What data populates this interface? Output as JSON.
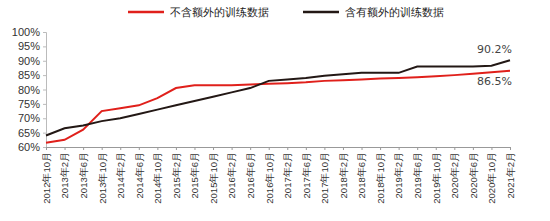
{
  "chart_data": {
    "type": "line",
    "categories": [
      "2012年10月",
      "2013年2月",
      "2013年6月",
      "2013年10月",
      "2014年2月",
      "2014年6月",
      "2014年10月",
      "2015年2月",
      "2015年6月",
      "2015年10月",
      "2016年2月",
      "2016年6月",
      "2016年10月",
      "2017年2月",
      "2017年6月",
      "2017年10月",
      "2018年2月",
      "2018年6月",
      "2018年10月",
      "2019年2月",
      "2019年6月",
      "2019年10月",
      "2020年2月",
      "2020年6月",
      "2020年10月",
      "2021年2月"
    ],
    "series": [
      {
        "name": "不含额外的训练数据",
        "color": "#e0201b",
        "values": [
          61.5,
          62.5,
          66,
          72.5,
          73.5,
          74.5,
          77,
          80.5,
          81.5,
          81.5,
          81.5,
          81.7,
          82,
          82.2,
          82.5,
          83,
          83.2,
          83.5,
          83.8,
          84,
          84.3,
          84.6,
          85,
          85.5,
          86,
          86.5
        ]
      },
      {
        "name": "含有额外的训练数据",
        "color": "#231815",
        "values": [
          64,
          66.5,
          67.5,
          69,
          70,
          71.5,
          73,
          74.5,
          76,
          77.5,
          79,
          80.5,
          83,
          83.5,
          84,
          84.8,
          85.3,
          85.8,
          85.8,
          85.8,
          88,
          88,
          88,
          88,
          88.3,
          90.2
        ]
      }
    ],
    "ylim": [
      60,
      100
    ],
    "yticks": [
      {
        "value": 60,
        "label": "60%"
      },
      {
        "value": 65,
        "label": "65%"
      },
      {
        "value": 70,
        "label": "70%"
      },
      {
        "value": 75,
        "label": "75%"
      },
      {
        "value": 80,
        "label": "80%"
      },
      {
        "value": 85,
        "label": "85%"
      },
      {
        "value": 90,
        "label": "90%"
      },
      {
        "value": 95,
        "label": "95%"
      },
      {
        "value": 100,
        "label": "100%"
      }
    ],
    "annotations": [
      {
        "label": "90.2%",
        "value": 90.2
      },
      {
        "label": "86.5%",
        "value": 86.5
      }
    ],
    "legend": "top",
    "grid": false
  }
}
